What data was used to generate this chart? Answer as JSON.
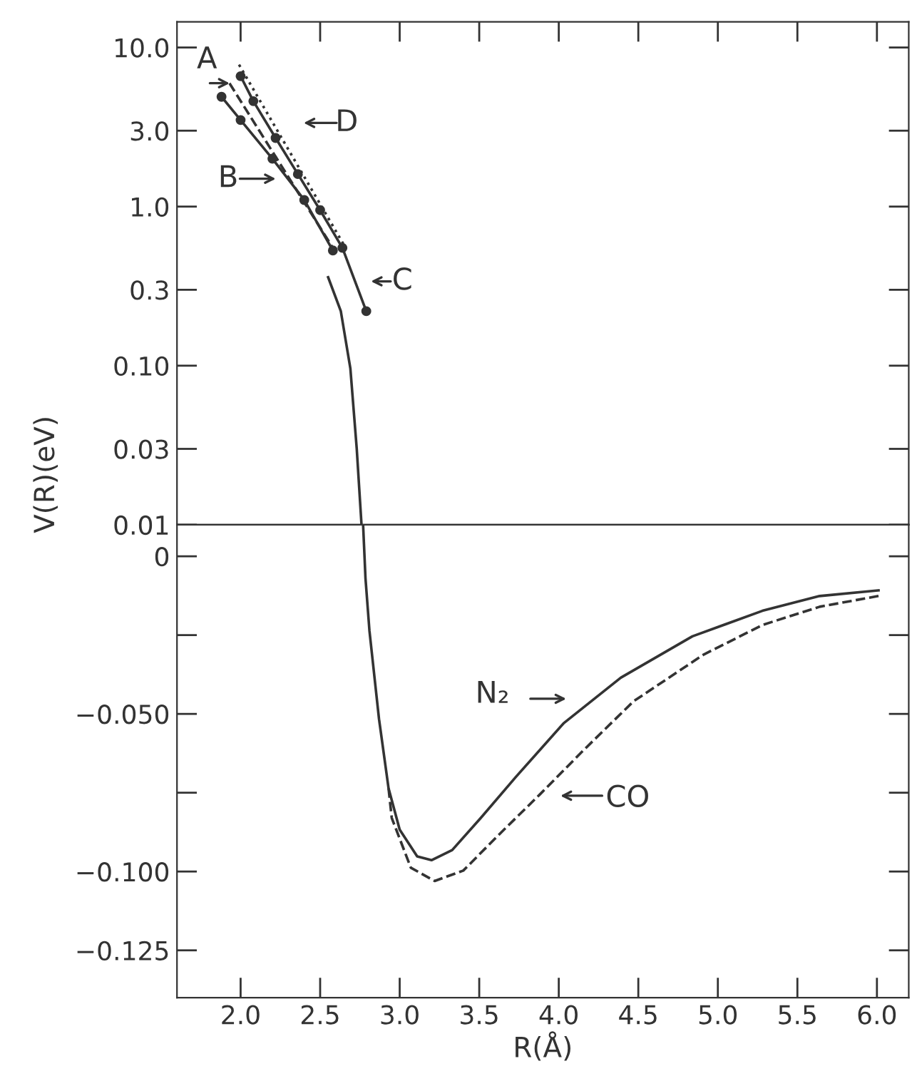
{
  "chart_data": [
    {
      "type": "line",
      "ylabel": "V(R)(eV)",
      "log": "y",
      "xlim": [
        1.6,
        6.2
      ],
      "ylim": [
        0.01,
        14.5
      ],
      "xticks": [
        {
          "value": 2.0,
          "label": null
        },
        {
          "value": 2.5,
          "label": null
        },
        {
          "value": 3.0,
          "label": null
        },
        {
          "value": 3.5,
          "label": null
        },
        {
          "value": 4.0,
          "label": null
        },
        {
          "value": 4.5,
          "label": null
        },
        {
          "value": 5.0,
          "label": null
        },
        {
          "value": 5.5,
          "label": null
        },
        {
          "value": 6.0,
          "label": null
        }
      ],
      "yticks": [
        {
          "value": 10,
          "label": "10.0"
        },
        {
          "value": 3,
          "label": "3.0"
        },
        {
          "value": 1,
          "label": "1.0"
        },
        {
          "value": 0.3,
          "label": "0.3"
        },
        {
          "value": 0.1,
          "label": "0.10"
        },
        {
          "value": 0.03,
          "label": "0.03"
        },
        {
          "value": 0.01,
          "label": "0.01"
        }
      ],
      "tick_labels": "y",
      "grid": false,
      "legend": false,
      "series": [
        {
          "color": "#333333",
          "line_style": "dashed",
          "marker": "none",
          "x": [
            1.93,
            2.58
          ],
          "values": [
            5.96,
            0.55
          ]
        },
        {
          "color": "#333333",
          "line_style": "solid",
          "marker": "circle",
          "x": [
            1.88,
            2.0,
            2.2,
            2.4,
            2.58
          ],
          "values": [
            4.9,
            3.5,
            2.0,
            1.1,
            0.53
          ]
        },
        {
          "color": "#333333",
          "line_style": "solid",
          "marker": "circle",
          "x": [
            2.0,
            2.08,
            2.22,
            2.36,
            2.5,
            2.64,
            2.79
          ],
          "values": [
            6.6,
            4.6,
            2.7,
            1.6,
            0.95,
            0.55,
            0.22
          ]
        },
        {
          "color": "#333333",
          "line_style": "dotted",
          "marker": "none",
          "x": [
            1.99,
            2.66
          ],
          "values": [
            7.8,
            0.55
          ]
        },
        {
          "color": "#333333",
          "line_style": "solid",
          "marker": "none",
          "x": [
            2.55,
            2.63,
            2.69,
            2.73,
            2.76
          ],
          "values": [
            0.36,
            0.22,
            0.096,
            0.03,
            0.01
          ]
        }
      ],
      "annotations": [
        "A",
        "D",
        "B",
        "C"
      ]
    },
    {
      "type": "line",
      "xlabel": "R(Å)",
      "xlim": [
        1.6,
        6.2
      ],
      "ylim": [
        -0.14,
        0.01
      ],
      "xticks": [
        {
          "value": 2.0,
          "label": "2.0"
        },
        {
          "value": 2.5,
          "label": "2.5"
        },
        {
          "value": 3.0,
          "label": "3.0"
        },
        {
          "value": 3.5,
          "label": "3.5"
        },
        {
          "value": 4.0,
          "label": "4.0"
        },
        {
          "value": 4.5,
          "label": "4.5"
        },
        {
          "value": 5.0,
          "label": "5.0"
        },
        {
          "value": 5.5,
          "label": "5.5"
        },
        {
          "value": 6.0,
          "label": "6.0"
        }
      ],
      "yticks": [
        {
          "value": 0,
          "label": "0"
        },
        {
          "value": -0.025,
          "label": null
        },
        {
          "value": -0.05,
          "label": "−0.050"
        },
        {
          "value": -0.075,
          "label": null
        },
        {
          "value": -0.1,
          "label": "−0.100"
        },
        {
          "value": -0.125,
          "label": "−0.125"
        }
      ],
      "grid": false,
      "legend": false,
      "series": [
        {
          "color": "#333333",
          "line_style": "solid",
          "marker": "none",
          "x": [
            2.77,
            2.785,
            2.81,
            2.87,
            2.93,
            3.0,
            3.11,
            3.2,
            3.33,
            3.51,
            3.73,
            4.03,
            4.39,
            4.84,
            5.28,
            5.64,
            6.01
          ],
          "values": [
            0.01,
            -0.007,
            -0.0237,
            -0.0516,
            -0.0736,
            -0.0867,
            -0.0952,
            -0.0964,
            -0.0932,
            -0.083,
            -0.07,
            -0.053,
            -0.0385,
            -0.0254,
            -0.0173,
            -0.0126,
            -0.0108
          ]
        },
        {
          "color": "#333333",
          "line_style": "dashed",
          "marker": "none",
          "x": [
            2.93,
            2.95,
            3.07,
            3.22,
            3.4,
            3.62,
            3.88,
            4.17,
            4.47,
            4.91,
            5.28,
            5.64,
            6.01
          ],
          "values": [
            -0.0736,
            -0.083,
            -0.0988,
            -0.103,
            -0.0997,
            -0.0885,
            -0.0756,
            -0.0608,
            -0.046,
            -0.0312,
            -0.0218,
            -0.016,
            -0.0126
          ]
        }
      ],
      "annotations": [
        "N₂",
        "CO"
      ]
    }
  ]
}
